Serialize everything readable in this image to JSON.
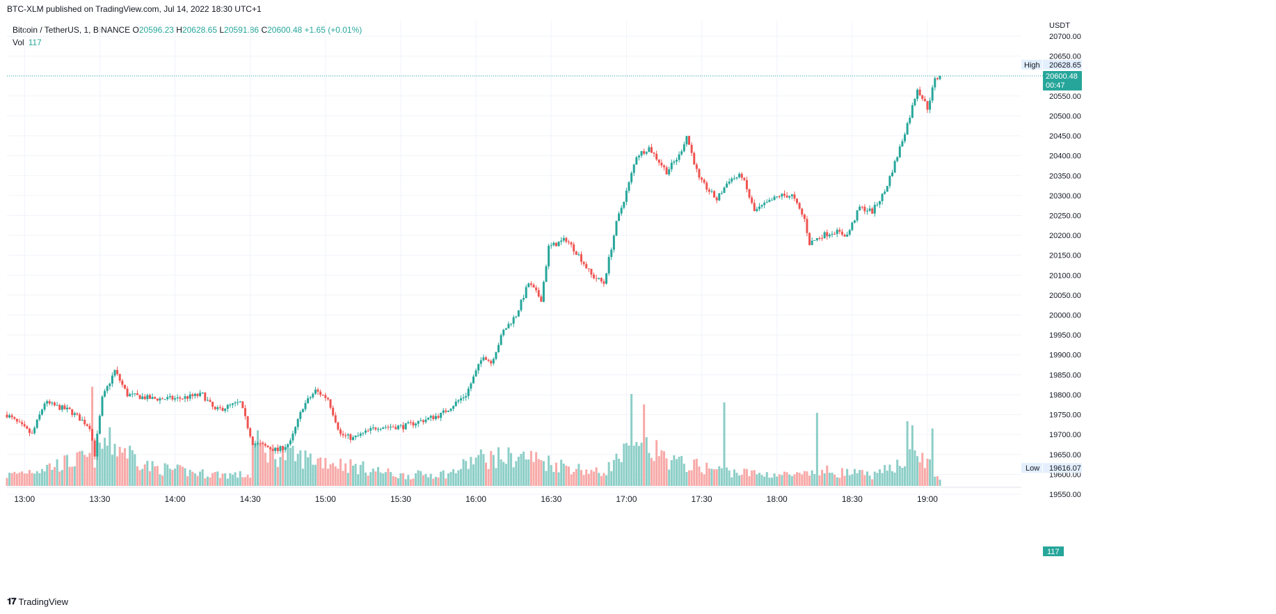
{
  "header": {
    "published_text": "BTC-XLM published on TradingView.com, Jul 14, 2022 18:30 UTC+1"
  },
  "legend": {
    "symbol": "Bitcoin / TetherUS, 1, BINANCE",
    "open_label": "O",
    "open_value": "20596.23",
    "high_label": "H",
    "high_value": "20628.65",
    "low_label": "L",
    "low_value": "20591.86",
    "close_label": "C",
    "close_value": "20600.48",
    "change": "+1.65 (+0.01%)",
    "vol_label": "Vol",
    "vol_value": "117"
  },
  "footer": {
    "brand": "TradingView"
  },
  "colors": {
    "up": "#26a69a",
    "down": "#ef5350",
    "up_vol": "#8ccec7",
    "down_vol": "#f7a9a7",
    "grid": "#f0f3fa",
    "axis_text": "#131722"
  },
  "chart_data": {
    "type": "candlestick",
    "symbol": "Bitcoin / TetherUS",
    "interval": "1",
    "exchange": "BINANCE",
    "currency": "USDT",
    "x_ticks": [
      "13:00",
      "13:30",
      "14:00",
      "14:30",
      "15:00",
      "15:30",
      "16:00",
      "16:30",
      "17:00",
      "17:30",
      "18:00",
      "18:30",
      "19:00"
    ],
    "y_ticks": [
      "20700.00",
      "20650.00",
      "20600.00",
      "20550.00",
      "20500.00",
      "20450.00",
      "20400.00",
      "20350.00",
      "20300.00",
      "20250.00",
      "20200.00",
      "20150.00",
      "20100.00",
      "20050.00",
      "20000.00",
      "19950.00",
      "19900.00",
      "19850.00",
      "19800.00",
      "19750.00",
      "19700.00",
      "19650.00",
      "19600.00",
      "19550.00"
    ],
    "ylim": [
      19530,
      20730
    ],
    "time_range": [
      "12:53",
      "19:05"
    ],
    "grid": true,
    "last_price": {
      "value": "20600.48",
      "countdown": "00:47"
    },
    "high_marker": {
      "label": "High",
      "value": "20628.65"
    },
    "low_marker": {
      "label": "Low",
      "value": "19616.07"
    },
    "volume_marker": {
      "value": "117"
    },
    "price_path": [
      [
        "12:53",
        19750
      ],
      [
        "13:03",
        19700
      ],
      [
        "13:08",
        19780
      ],
      [
        "13:18",
        19760
      ],
      [
        "13:26",
        19720
      ],
      [
        "13:28",
        19650
      ],
      [
        "13:31",
        19790
      ],
      [
        "13:36",
        19860
      ],
      [
        "13:41",
        19800
      ],
      [
        "13:51",
        19790
      ],
      [
        "14:01",
        19790
      ],
      [
        "14:11",
        19800
      ],
      [
        "14:16",
        19760
      ],
      [
        "14:21",
        19770
      ],
      [
        "14:26",
        19780
      ],
      [
        "14:31",
        19680
      ],
      [
        "14:41",
        19660
      ],
      [
        "14:46",
        19680
      ],
      [
        "14:51",
        19770
      ],
      [
        "14:56",
        19810
      ],
      [
        "15:01",
        19790
      ],
      [
        "15:06",
        19700
      ],
      [
        "15:11",
        19690
      ],
      [
        "15:21",
        19720
      ],
      [
        "15:31",
        19720
      ],
      [
        "15:36",
        19730
      ],
      [
        "15:46",
        19750
      ],
      [
        "15:56",
        19800
      ],
      [
        "16:03",
        19900
      ],
      [
        "16:06",
        19880
      ],
      [
        "16:11",
        19960
      ],
      [
        "16:16",
        20000
      ],
      [
        "16:21",
        20080
      ],
      [
        "16:26",
        20040
      ],
      [
        "16:29",
        20170
      ],
      [
        "16:36",
        20190
      ],
      [
        "16:41",
        20150
      ],
      [
        "16:46",
        20100
      ],
      [
        "16:51",
        20080
      ],
      [
        "16:56",
        20230
      ],
      [
        "17:01",
        20330
      ],
      [
        "17:04",
        20400
      ],
      [
        "17:09",
        20420
      ],
      [
        "17:16",
        20360
      ],
      [
        "17:21",
        20400
      ],
      [
        "17:24",
        20450
      ],
      [
        "17:29",
        20340
      ],
      [
        "17:36",
        20290
      ],
      [
        "17:41",
        20340
      ],
      [
        "17:46",
        20350
      ],
      [
        "17:51",
        20260
      ],
      [
        "17:56",
        20280
      ],
      [
        "18:01",
        20300
      ],
      [
        "18:06",
        20300
      ],
      [
        "18:11",
        20240
      ],
      [
        "18:13",
        20180
      ],
      [
        "18:18",
        20200
      ],
      [
        "18:23",
        20210
      ],
      [
        "18:28",
        20200
      ],
      [
        "18:33",
        20270
      ],
      [
        "18:38",
        20260
      ],
      [
        "18:43",
        20310
      ],
      [
        "18:48",
        20400
      ],
      [
        "18:53",
        20500
      ],
      [
        "18:56",
        20570
      ],
      [
        "19:00",
        20520
      ],
      [
        "19:03",
        20590
      ],
      [
        "19:05",
        20600
      ]
    ],
    "volume_profile": [
      [
        "12:53",
        10
      ],
      [
        "13:28",
        28
      ],
      [
        "13:32",
        42
      ],
      [
        "13:40",
        35
      ],
      [
        "13:50",
        18
      ],
      [
        "14:10",
        12
      ],
      [
        "14:30",
        10
      ],
      [
        "14:32",
        40
      ],
      [
        "14:40",
        30
      ],
      [
        "15:00",
        24
      ],
      [
        "15:30",
        10
      ],
      [
        "15:50",
        12
      ],
      [
        "16:00",
        26
      ],
      [
        "16:20",
        28
      ],
      [
        "16:30",
        22
      ],
      [
        "16:50",
        12
      ],
      [
        "17:00",
        32
      ],
      [
        "17:10",
        34
      ],
      [
        "17:20",
        22
      ],
      [
        "17:40",
        14
      ],
      [
        "17:50",
        12
      ],
      [
        "18:10",
        10
      ],
      [
        "18:20",
        14
      ],
      [
        "18:40",
        10
      ],
      [
        "18:50",
        25
      ],
      [
        "18:58",
        28
      ],
      [
        "19:05",
        6
      ]
    ],
    "volume_spikes": [
      [
        "13:27",
        95
      ],
      [
        "14:31",
        45
      ],
      [
        "17:02",
        88
      ],
      [
        "17:07",
        78
      ],
      [
        "17:39",
        80
      ],
      [
        "18:16",
        70
      ],
      [
        "18:52",
        62
      ],
      [
        "18:54",
        58
      ],
      [
        "19:02",
        55
      ]
    ]
  }
}
